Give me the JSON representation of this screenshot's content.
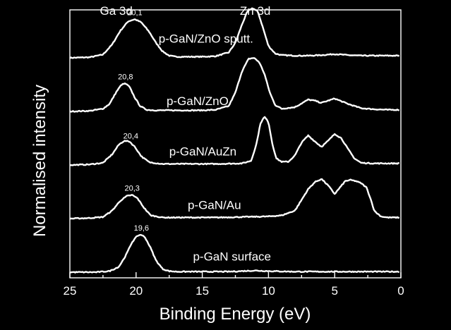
{
  "chart_data": {
    "type": "line",
    "xlabel": "Binding Energy (eV)",
    "ylabel": "Normalised intensity",
    "xlim": [
      25,
      0
    ],
    "x_reversed": true,
    "xticks": [
      25,
      20,
      15,
      10,
      5,
      0
    ],
    "xtick_labels": [
      "25",
      "20",
      "15",
      "10",
      "5",
      "0"
    ],
    "y_ticks_shown": false,
    "grid": false,
    "region_labels": [
      {
        "text": "Ga 3d",
        "x": 21.5
      },
      {
        "text": "Zn 3d",
        "x": 11.0
      }
    ],
    "series": [
      {
        "name": "p-GaN/ZnO sputt.",
        "offset": 4.0,
        "peak_label": "20,1",
        "peak_x": 20.1,
        "x": [
          25,
          23.5,
          22.5,
          21.8,
          21.2,
          20.6,
          20.1,
          19.6,
          19.0,
          18.5,
          18.0,
          17.5,
          17.0,
          16.0,
          15.0,
          14.0,
          13.0,
          12.5,
          12.0,
          11.6,
          11.2,
          10.8,
          10.4,
          10.0,
          9.5,
          9.0,
          8.0,
          7.0,
          6.0,
          5.0,
          4.0,
          3.0,
          2.0,
          1.0,
          0.1
        ],
        "y": [
          0.0,
          0.01,
          0.06,
          0.25,
          0.5,
          0.68,
          0.72,
          0.66,
          0.48,
          0.28,
          0.12,
          0.04,
          0.02,
          0.02,
          0.02,
          0.03,
          0.1,
          0.28,
          0.62,
          0.86,
          0.93,
          0.86,
          0.55,
          0.22,
          0.08,
          0.05,
          0.04,
          0.04,
          0.05,
          0.07,
          0.05,
          0.04,
          0.04,
          0.04,
          0.04
        ]
      },
      {
        "name": "p-GaN/ZnO",
        "offset": 3.0,
        "peak_label": "20,8",
        "peak_x": 20.8,
        "x": [
          25,
          23.5,
          22.5,
          22.0,
          21.5,
          21.1,
          20.8,
          20.5,
          20.1,
          19.7,
          19.2,
          18.5,
          17.0,
          15.0,
          14.0,
          13.0,
          12.5,
          12.0,
          11.5,
          11.1,
          10.7,
          10.3,
          9.9,
          9.5,
          9.0,
          8.0,
          7.0,
          6.5,
          6.0,
          5.0,
          4.0,
          3.0,
          2.0,
          1.0,
          0.1
        ],
        "y": [
          0.0,
          0.01,
          0.05,
          0.14,
          0.36,
          0.5,
          0.52,
          0.46,
          0.26,
          0.1,
          0.03,
          0.02,
          0.02,
          0.02,
          0.03,
          0.1,
          0.35,
          0.75,
          0.98,
          1.0,
          0.92,
          0.7,
          0.35,
          0.12,
          0.05,
          0.08,
          0.22,
          0.2,
          0.16,
          0.24,
          0.14,
          0.06,
          0.04,
          0.03,
          0.03
        ]
      },
      {
        "name": "p-GaN/AuZn",
        "offset": 2.0,
        "peak_label": "20,4",
        "peak_x": 20.4,
        "x": [
          25,
          23.5,
          22.5,
          21.8,
          21.3,
          20.9,
          20.5,
          20.1,
          19.6,
          19.0,
          18.0,
          16.0,
          14.0,
          12.0,
          11.3,
          10.9,
          10.6,
          10.3,
          10.0,
          9.7,
          9.4,
          9.0,
          8.5,
          8.0,
          7.5,
          7.0,
          6.5,
          6.0,
          5.5,
          5.0,
          4.5,
          4.0,
          3.5,
          3.0,
          2.0,
          1.0,
          0.1
        ],
        "y": [
          0.0,
          0.01,
          0.04,
          0.2,
          0.38,
          0.45,
          0.44,
          0.34,
          0.16,
          0.05,
          0.02,
          0.02,
          0.02,
          0.03,
          0.08,
          0.4,
          0.78,
          0.9,
          0.8,
          0.38,
          0.12,
          0.06,
          0.06,
          0.18,
          0.42,
          0.55,
          0.44,
          0.34,
          0.45,
          0.58,
          0.5,
          0.3,
          0.12,
          0.04,
          0.03,
          0.03,
          0.03
        ]
      },
      {
        "name": "p-GaN/Au",
        "offset": 1.0,
        "peak_label": "20,3",
        "peak_x": 20.3,
        "x": [
          25,
          23.5,
          22.5,
          21.8,
          21.2,
          20.7,
          20.3,
          19.9,
          19.4,
          18.9,
          18.0,
          16.0,
          14.0,
          12.0,
          10.0,
          9.0,
          8.0,
          7.5,
          7.0,
          6.5,
          6.0,
          5.5,
          5.0,
          4.6,
          4.2,
          3.8,
          3.4,
          3.0,
          2.6,
          2.3,
          2.0,
          1.5,
          1.0,
          0.1
        ],
        "y": [
          0.0,
          0.01,
          0.03,
          0.15,
          0.33,
          0.42,
          0.44,
          0.38,
          0.2,
          0.06,
          0.02,
          0.02,
          0.02,
          0.03,
          0.04,
          0.06,
          0.15,
          0.35,
          0.55,
          0.68,
          0.74,
          0.62,
          0.46,
          0.58,
          0.7,
          0.72,
          0.7,
          0.66,
          0.58,
          0.38,
          0.14,
          0.04,
          0.02,
          0.02
        ]
      },
      {
        "name": "p-GaN surface",
        "offset": 0.0,
        "peak_label": "19,6",
        "peak_x": 19.6,
        "x": [
          25,
          23.0,
          22.0,
          21.3,
          20.8,
          20.3,
          19.9,
          19.6,
          19.3,
          18.9,
          18.5,
          18.0,
          17.5,
          17.0,
          15.0,
          13.0,
          12.0,
          11.0,
          10.0,
          8.0,
          6.0,
          4.0,
          2.0,
          0.1
        ],
        "y": [
          0.0,
          0.0,
          0.02,
          0.1,
          0.3,
          0.56,
          0.68,
          0.7,
          0.64,
          0.45,
          0.22,
          0.06,
          0.02,
          0.01,
          0.01,
          0.01,
          0.02,
          0.03,
          0.02,
          0.01,
          0.01,
          0.01,
          0.01,
          0.01
        ]
      }
    ]
  }
}
